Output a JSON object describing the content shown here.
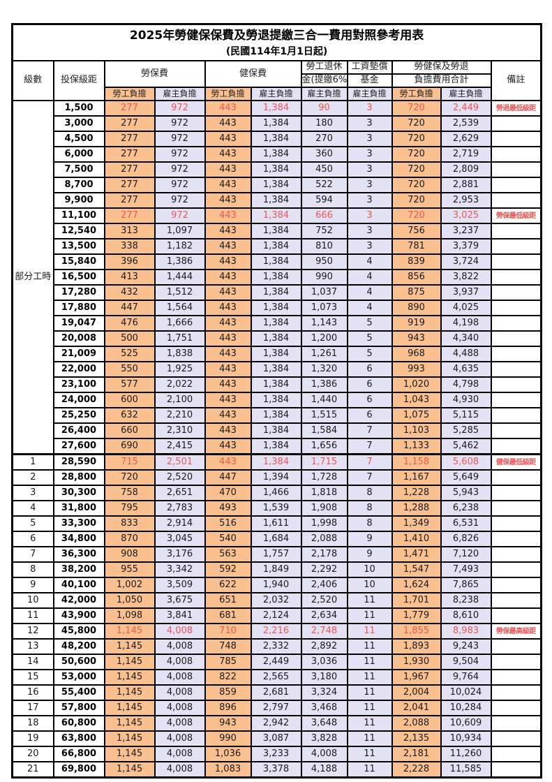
{
  "title": "2025年勞健保保費及勞退提繳三合一費用對照參考用表",
  "subtitle": "(民國114年1月1日起)",
  "header": {
    "level": "級數",
    "bracket": "投保級距",
    "labor": "勞保費",
    "health": "健保費",
    "pension_line1": "勞工退休",
    "pension_line2": "金(提繳6%)",
    "wage_fund_line1": "工資墊償",
    "wage_fund_line2": "基金",
    "total_line1": "勞健保及勞退",
    "total_line2": "負擔費用合計",
    "employee": "勞工負擔",
    "employer": "雇主負擔",
    "note": "備註"
  },
  "part_time": {
    "label": "部分工時",
    "span": 23
  },
  "colors": {
    "employee_bg": "#FAC08F",
    "employer_bg": "#E3E2F4",
    "highlight_text": "#F05555",
    "border": "#000000"
  },
  "rows": [
    {
      "level": null,
      "bracket": "1,500",
      "cells": [
        "277",
        "972",
        "443",
        "1,384",
        "90",
        "3",
        "720",
        "2,449"
      ],
      "note": "勞退最低級距",
      "highlight": true,
      "separator": false
    },
    {
      "level": null,
      "bracket": "3,000",
      "cells": [
        "277",
        "972",
        "443",
        "1,384",
        "180",
        "3",
        "720",
        "2,539"
      ],
      "note": "",
      "highlight": false,
      "separator": false
    },
    {
      "level": null,
      "bracket": "4,500",
      "cells": [
        "277",
        "972",
        "443",
        "1,384",
        "270",
        "3",
        "720",
        "2,629"
      ],
      "note": "",
      "highlight": false,
      "separator": false
    },
    {
      "level": null,
      "bracket": "6,000",
      "cells": [
        "277",
        "972",
        "443",
        "1,384",
        "360",
        "3",
        "720",
        "2,719"
      ],
      "note": "",
      "highlight": false,
      "separator": false
    },
    {
      "level": null,
      "bracket": "7,500",
      "cells": [
        "277",
        "972",
        "443",
        "1,384",
        "450",
        "3",
        "720",
        "2,809"
      ],
      "note": "",
      "highlight": false,
      "separator": false
    },
    {
      "level": null,
      "bracket": "8,700",
      "cells": [
        "277",
        "972",
        "443",
        "1,384",
        "522",
        "3",
        "720",
        "2,881"
      ],
      "note": "",
      "highlight": false,
      "separator": false
    },
    {
      "level": null,
      "bracket": "9,900",
      "cells": [
        "277",
        "972",
        "443",
        "1,384",
        "594",
        "3",
        "720",
        "2,953"
      ],
      "note": "",
      "highlight": false,
      "separator": false
    },
    {
      "level": null,
      "bracket": "11,100",
      "cells": [
        "277",
        "972",
        "443",
        "1,384",
        "666",
        "3",
        "720",
        "3,025"
      ],
      "note": "勞保最低級距",
      "highlight": true,
      "separator": false
    },
    {
      "level": null,
      "bracket": "12,540",
      "cells": [
        "313",
        "1,097",
        "443",
        "1,384",
        "752",
        "3",
        "756",
        "3,237"
      ],
      "note": "",
      "highlight": false,
      "separator": false
    },
    {
      "level": null,
      "bracket": "13,500",
      "cells": [
        "338",
        "1,182",
        "443",
        "1,384",
        "810",
        "3",
        "781",
        "3,379"
      ],
      "note": "",
      "highlight": false,
      "separator": false
    },
    {
      "level": null,
      "bracket": "15,840",
      "cells": [
        "396",
        "1,386",
        "443",
        "1,384",
        "950",
        "4",
        "839",
        "3,724"
      ],
      "note": "",
      "highlight": false,
      "separator": false
    },
    {
      "level": null,
      "bracket": "16,500",
      "cells": [
        "413",
        "1,444",
        "443",
        "1,384",
        "990",
        "4",
        "856",
        "3,822"
      ],
      "note": "",
      "highlight": false,
      "separator": false
    },
    {
      "level": null,
      "bracket": "17,280",
      "cells": [
        "432",
        "1,512",
        "443",
        "1,384",
        "1,037",
        "4",
        "875",
        "3,937"
      ],
      "note": "",
      "highlight": false,
      "separator": false
    },
    {
      "level": null,
      "bracket": "17,880",
      "cells": [
        "447",
        "1,564",
        "443",
        "1,384",
        "1,073",
        "4",
        "890",
        "4,025"
      ],
      "note": "",
      "highlight": false,
      "separator": false
    },
    {
      "level": null,
      "bracket": "19,047",
      "cells": [
        "476",
        "1,666",
        "443",
        "1,384",
        "1,143",
        "5",
        "919",
        "4,198"
      ],
      "note": "",
      "highlight": false,
      "separator": false
    },
    {
      "level": null,
      "bracket": "20,008",
      "cells": [
        "500",
        "1,751",
        "443",
        "1,384",
        "1,200",
        "5",
        "943",
        "4,340"
      ],
      "note": "",
      "highlight": false,
      "separator": false
    },
    {
      "level": null,
      "bracket": "21,009",
      "cells": [
        "525",
        "1,838",
        "443",
        "1,384",
        "1,261",
        "5",
        "968",
        "4,488"
      ],
      "note": "",
      "highlight": false,
      "separator": false
    },
    {
      "level": null,
      "bracket": "22,000",
      "cells": [
        "550",
        "1,925",
        "443",
        "1,384",
        "1,320",
        "6",
        "993",
        "4,635"
      ],
      "note": "",
      "highlight": false,
      "separator": false
    },
    {
      "level": null,
      "bracket": "23,100",
      "cells": [
        "577",
        "2,022",
        "443",
        "1,384",
        "1,386",
        "6",
        "1,020",
        "4,798"
      ],
      "note": "",
      "highlight": false,
      "separator": false
    },
    {
      "level": null,
      "bracket": "24,000",
      "cells": [
        "600",
        "2,100",
        "443",
        "1,384",
        "1,440",
        "6",
        "1,043",
        "4,930"
      ],
      "note": "",
      "highlight": false,
      "separator": false
    },
    {
      "level": null,
      "bracket": "25,250",
      "cells": [
        "632",
        "2,210",
        "443",
        "1,384",
        "1,515",
        "6",
        "1,075",
        "5,115"
      ],
      "note": "",
      "highlight": false,
      "separator": false
    },
    {
      "level": null,
      "bracket": "26,400",
      "cells": [
        "660",
        "2,310",
        "443",
        "1,384",
        "1,584",
        "7",
        "1,103",
        "5,285"
      ],
      "note": "",
      "highlight": false,
      "separator": false
    },
    {
      "level": null,
      "bracket": "27,600",
      "cells": [
        "690",
        "2,415",
        "443",
        "1,384",
        "1,656",
        "7",
        "1,133",
        "5,462"
      ],
      "note": "",
      "highlight": false,
      "separator": false
    },
    {
      "level": "1",
      "bracket": "28,590",
      "cells": [
        "715",
        "2,501",
        "443",
        "1,384",
        "1,715",
        "7",
        "1,158",
        "5,608"
      ],
      "note": "健保最低級距",
      "highlight": true,
      "separator": true
    },
    {
      "level": "2",
      "bracket": "28,800",
      "cells": [
        "720",
        "2,520",
        "447",
        "1,394",
        "1,728",
        "7",
        "1,167",
        "5,649"
      ],
      "note": "",
      "highlight": false,
      "separator": false
    },
    {
      "level": "3",
      "bracket": "30,300",
      "cells": [
        "758",
        "2,651",
        "470",
        "1,466",
        "1,818",
        "8",
        "1,228",
        "5,943"
      ],
      "note": "",
      "highlight": false,
      "separator": false
    },
    {
      "level": "4",
      "bracket": "31,800",
      "cells": [
        "795",
        "2,783",
        "493",
        "1,539",
        "1,908",
        "8",
        "1,288",
        "6,238"
      ],
      "note": "",
      "highlight": false,
      "separator": false
    },
    {
      "level": "5",
      "bracket": "33,300",
      "cells": [
        "833",
        "2,914",
        "516",
        "1,611",
        "1,998",
        "8",
        "1,349",
        "6,531"
      ],
      "note": "",
      "highlight": false,
      "separator": false
    },
    {
      "level": "6",
      "bracket": "34,800",
      "cells": [
        "870",
        "3,045",
        "540",
        "1,684",
        "2,088",
        "9",
        "1,410",
        "6,826"
      ],
      "note": "",
      "highlight": false,
      "separator": false
    },
    {
      "level": "7",
      "bracket": "36,300",
      "cells": [
        "908",
        "3,176",
        "563",
        "1,757",
        "2,178",
        "9",
        "1,471",
        "7,120"
      ],
      "note": "",
      "highlight": false,
      "separator": false
    },
    {
      "level": "8",
      "bracket": "38,200",
      "cells": [
        "955",
        "3,342",
        "592",
        "1,849",
        "2,292",
        "10",
        "1,547",
        "7,493"
      ],
      "note": "",
      "highlight": false,
      "separator": false
    },
    {
      "level": "9",
      "bracket": "40,100",
      "cells": [
        "1,002",
        "3,509",
        "622",
        "1,940",
        "2,406",
        "10",
        "1,624",
        "7,865"
      ],
      "note": "",
      "highlight": false,
      "separator": false
    },
    {
      "level": "10",
      "bracket": "42,000",
      "cells": [
        "1,050",
        "3,675",
        "651",
        "2,032",
        "2,520",
        "11",
        "1,701",
        "8,238"
      ],
      "note": "",
      "highlight": false,
      "separator": false
    },
    {
      "level": "11",
      "bracket": "43,900",
      "cells": [
        "1,098",
        "3,841",
        "681",
        "2,124",
        "2,634",
        "11",
        "1,779",
        "8,610"
      ],
      "note": "",
      "highlight": false,
      "separator": false
    },
    {
      "level": "12",
      "bracket": "45,800",
      "cells": [
        "1,145",
        "4,008",
        "710",
        "2,216",
        "2,748",
        "11",
        "1,855",
        "8,983"
      ],
      "note": "勞保最高級距",
      "highlight": true,
      "separator": false
    },
    {
      "level": "13",
      "bracket": "48,200",
      "cells": [
        "1,145",
        "4,008",
        "748",
        "2,332",
        "2,892",
        "11",
        "1,893",
        "9,243"
      ],
      "note": "",
      "highlight": false,
      "separator": false
    },
    {
      "level": "14",
      "bracket": "50,600",
      "cells": [
        "1,145",
        "4,008",
        "785",
        "2,449",
        "3,036",
        "11",
        "1,930",
        "9,504"
      ],
      "note": "",
      "highlight": false,
      "separator": false
    },
    {
      "level": "15",
      "bracket": "53,000",
      "cells": [
        "1,145",
        "4,008",
        "822",
        "2,565",
        "3,180",
        "11",
        "1,967",
        "9,764"
      ],
      "note": "",
      "highlight": false,
      "separator": false
    },
    {
      "level": "16",
      "bracket": "55,400",
      "cells": [
        "1,145",
        "4,008",
        "859",
        "2,681",
        "3,324",
        "11",
        "2,004",
        "10,024"
      ],
      "note": "",
      "highlight": false,
      "separator": false
    },
    {
      "level": "17",
      "bracket": "57,800",
      "cells": [
        "1,145",
        "4,008",
        "896",
        "2,797",
        "3,468",
        "11",
        "2,041",
        "10,284"
      ],
      "note": "",
      "highlight": false,
      "separator": false
    },
    {
      "level": "18",
      "bracket": "60,800",
      "cells": [
        "1,145",
        "4,008",
        "943",
        "2,942",
        "3,648",
        "11",
        "2,088",
        "10,609"
      ],
      "note": "",
      "highlight": false,
      "separator": false
    },
    {
      "level": "19",
      "bracket": "63,800",
      "cells": [
        "1,145",
        "4,008",
        "990",
        "3,087",
        "3,828",
        "11",
        "2,135",
        "10,934"
      ],
      "note": "",
      "highlight": false,
      "separator": false
    },
    {
      "level": "20",
      "bracket": "66,800",
      "cells": [
        "1,145",
        "4,008",
        "1,036",
        "3,233",
        "4,008",
        "11",
        "2,181",
        "11,260"
      ],
      "note": "",
      "highlight": false,
      "separator": false
    },
    {
      "level": "21",
      "bracket": "69,800",
      "cells": [
        "1,145",
        "4,008",
        "1,083",
        "3,378",
        "4,188",
        "11",
        "2,228",
        "11,585"
      ],
      "note": "",
      "highlight": false,
      "separator": false
    }
  ]
}
